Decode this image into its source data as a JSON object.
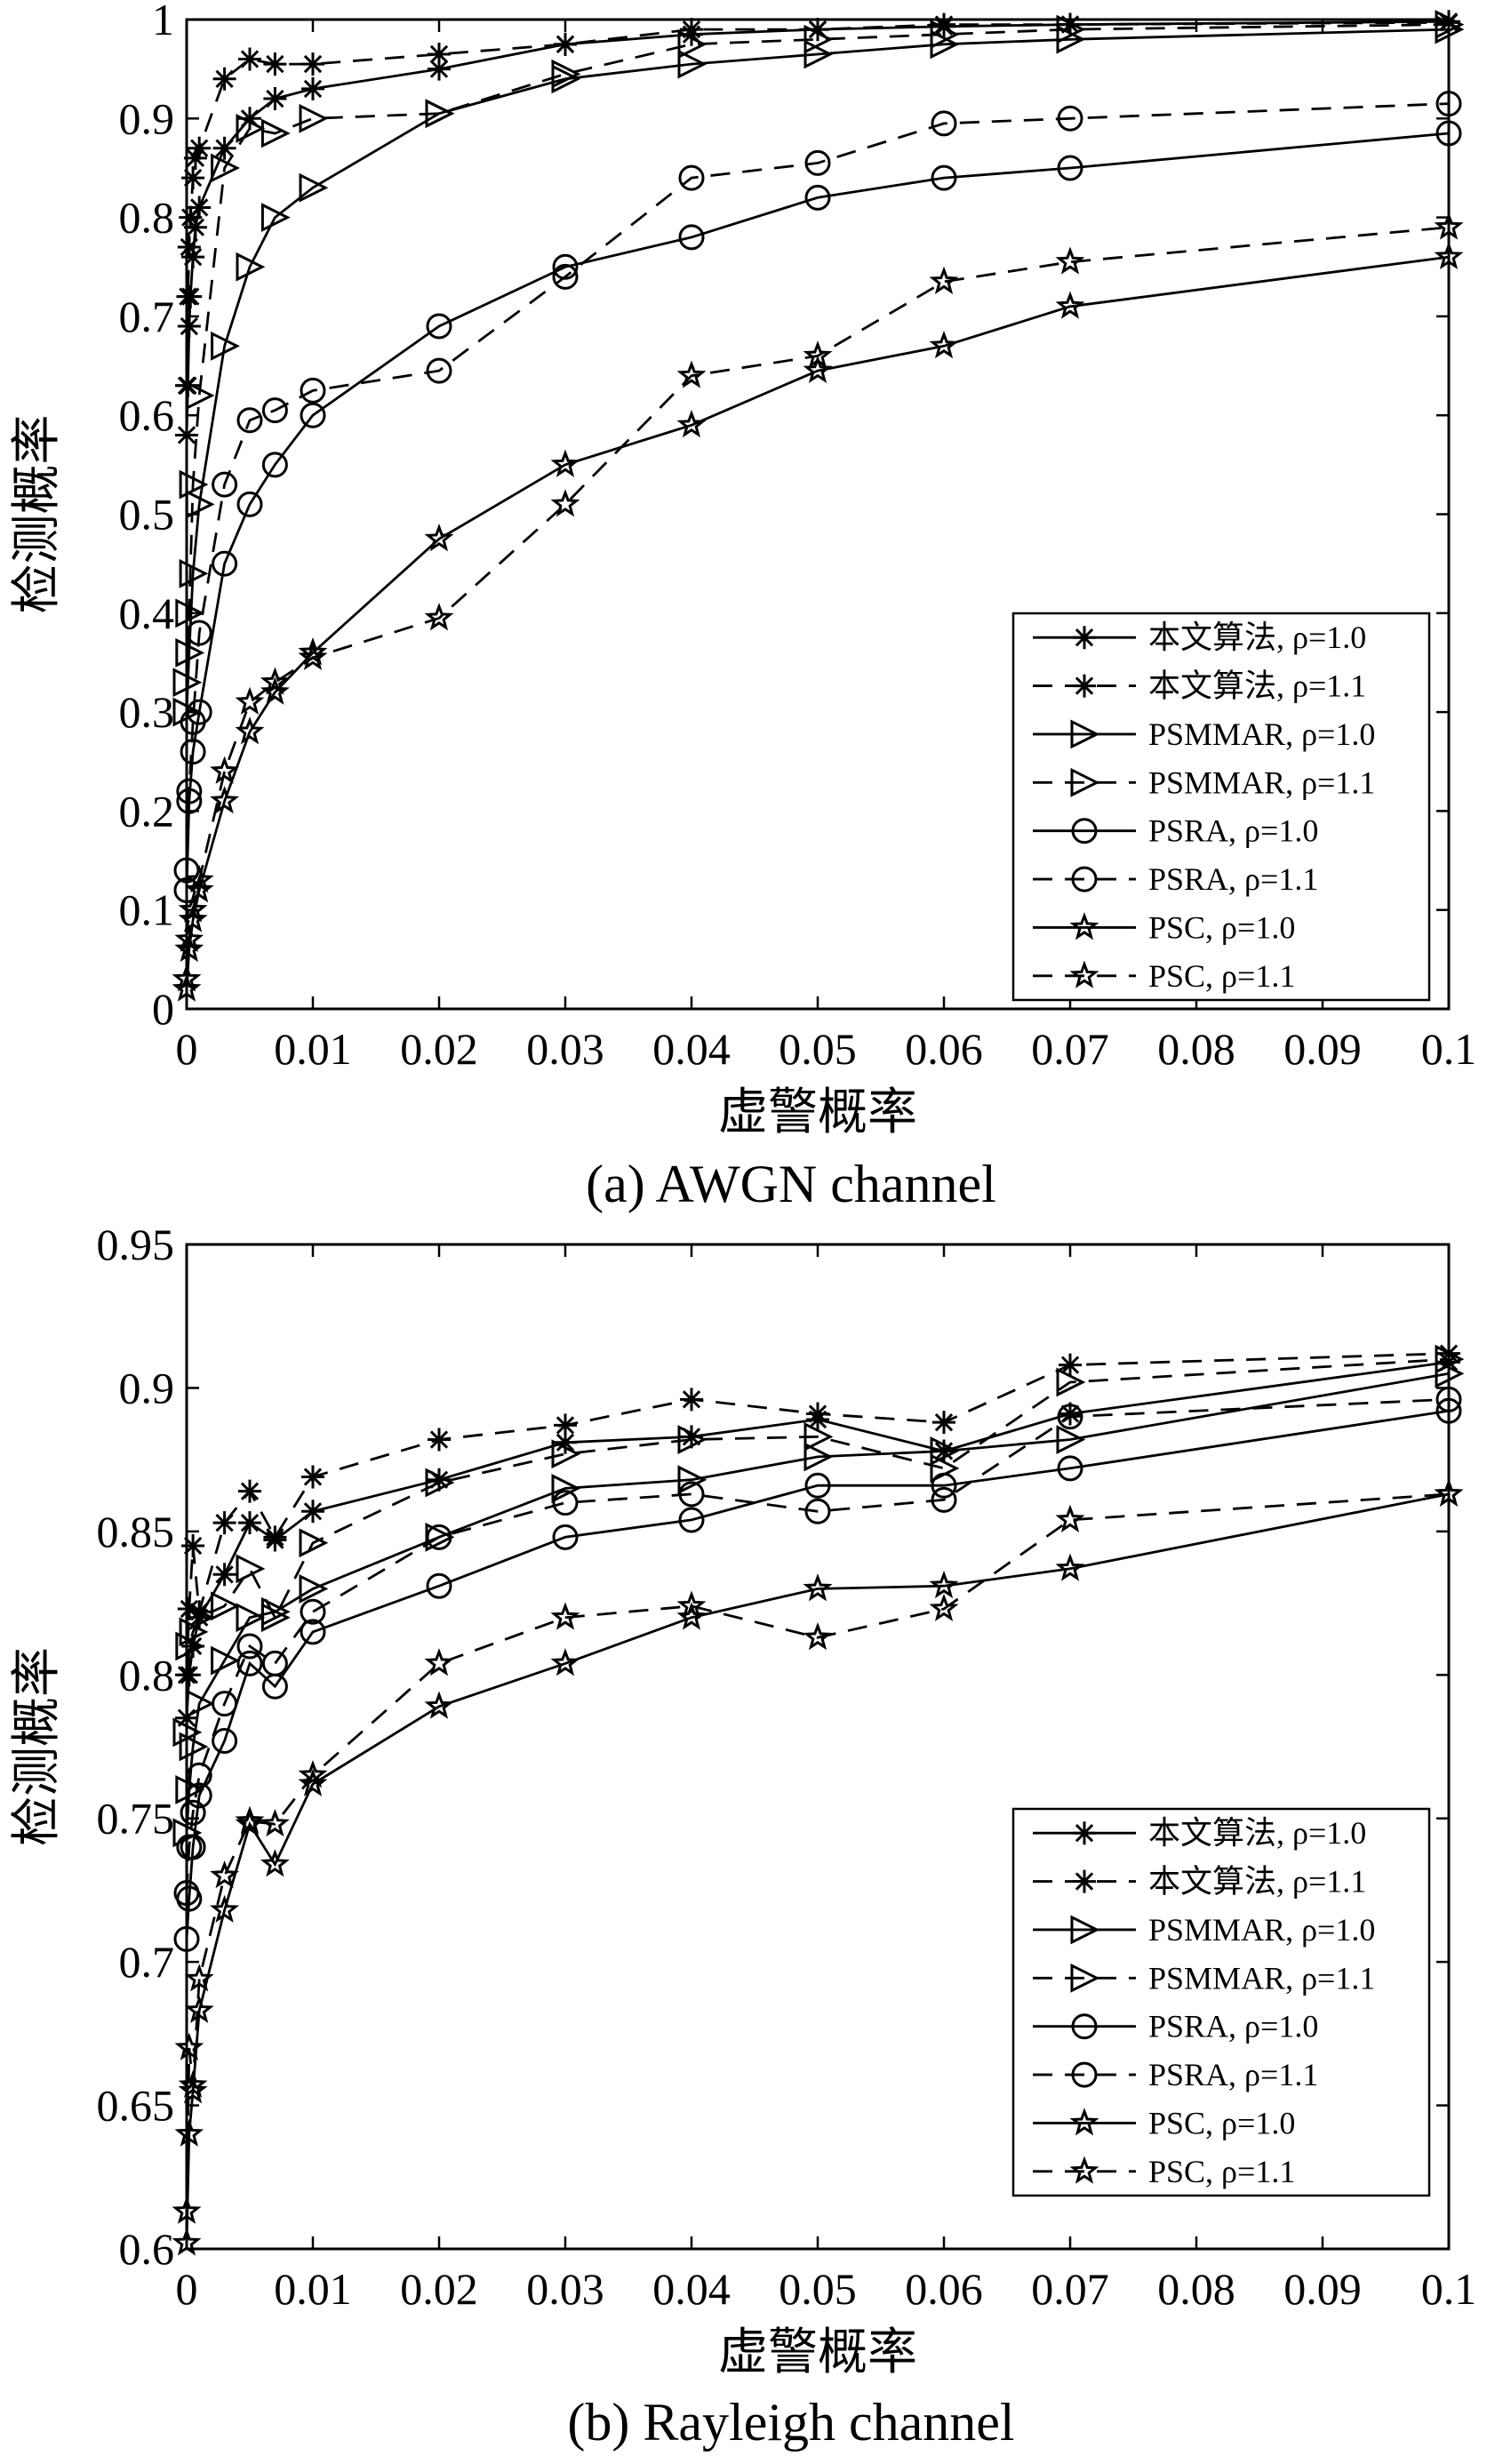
{
  "chart_data": [
    {
      "type": "line",
      "panel": "a",
      "caption": "(a) AWGN channel",
      "xlabel": "虚警概率",
      "ylabel": "检测概率",
      "xlim": [
        0,
        0.1
      ],
      "ylim": [
        0,
        1
      ],
      "xticks": [
        "0",
        "0.01",
        "0.02",
        "0.03",
        "0.04",
        "0.05",
        "0.06",
        "0.07",
        "0.08",
        "0.09",
        "0.1"
      ],
      "yticks": [
        "0",
        "0.1",
        "0.2",
        "0.3",
        "0.4",
        "0.5",
        "0.6",
        "0.7",
        "0.8",
        "0.9",
        "1"
      ],
      "grid": false,
      "legend_position": "bottom-right",
      "series": [
        {
          "name": "本文算法, ρ=1.0",
          "marker": "asterisk",
          "dashed": false,
          "x": [
            0,
            0.0001,
            0.0002,
            0.0003,
            0.0005,
            0.0007,
            0.001,
            0.003,
            0.005,
            0.007,
            0.01,
            0.02,
            0.03,
            0.04,
            0.05,
            0.06,
            0.07,
            0.1
          ],
          "y": [
            0.58,
            0.63,
            0.69,
            0.72,
            0.76,
            0.79,
            0.81,
            0.87,
            0.9,
            0.92,
            0.93,
            0.95,
            0.975,
            0.985,
            0.99,
            0.993,
            0.995,
            0.998
          ]
        },
        {
          "name": "本文算法, ρ=1.1",
          "marker": "asterisk",
          "dashed": true,
          "x": [
            0,
            0.0001,
            0.0002,
            0.0003,
            0.0005,
            0.0007,
            0.001,
            0.003,
            0.005,
            0.007,
            0.01,
            0.02,
            0.03,
            0.04,
            0.05,
            0.06,
            0.07,
            0.1
          ],
          "y": [
            0.63,
            0.72,
            0.77,
            0.8,
            0.84,
            0.86,
            0.87,
            0.94,
            0.96,
            0.955,
            0.955,
            0.965,
            0.975,
            0.99,
            0.99,
            0.995,
            0.995,
            0.997
          ]
        },
        {
          "name": "PSMMAR, ρ=1.0",
          "marker": "triangle-right",
          "dashed": false,
          "x": [
            0,
            0.0002,
            0.0005,
            0.001,
            0.003,
            0.005,
            0.007,
            0.01,
            0.02,
            0.03,
            0.04,
            0.05,
            0.06,
            0.07,
            0.1
          ],
          "y": [
            0.3,
            0.36,
            0.44,
            0.51,
            0.67,
            0.75,
            0.8,
            0.83,
            0.905,
            0.94,
            0.955,
            0.965,
            0.975,
            0.98,
            0.99
          ]
        },
        {
          "name": "PSMMAR, ρ=1.1",
          "marker": "triangle-right",
          "dashed": true,
          "x": [
            0,
            0.0002,
            0.0005,
            0.001,
            0.003,
            0.005,
            0.007,
            0.01,
            0.02,
            0.03,
            0.04,
            0.05,
            0.06,
            0.07,
            0.1
          ],
          "y": [
            0.33,
            0.4,
            0.53,
            0.62,
            0.85,
            0.89,
            0.885,
            0.9,
            0.905,
            0.945,
            0.975,
            0.98,
            0.985,
            0.99,
            0.995
          ]
        },
        {
          "name": "PSRA, ρ=1.0",
          "marker": "circle",
          "dashed": false,
          "x": [
            0,
            0.0002,
            0.0005,
            0.001,
            0.003,
            0.005,
            0.007,
            0.01,
            0.02,
            0.03,
            0.04,
            0.05,
            0.06,
            0.07,
            0.1
          ],
          "y": [
            0.12,
            0.21,
            0.26,
            0.3,
            0.45,
            0.51,
            0.55,
            0.6,
            0.69,
            0.75,
            0.78,
            0.82,
            0.84,
            0.85,
            0.885
          ]
        },
        {
          "name": "PSRA, ρ=1.1",
          "marker": "circle",
          "dashed": true,
          "x": [
            0,
            0.0002,
            0.0005,
            0.001,
            0.003,
            0.005,
            0.007,
            0.01,
            0.02,
            0.03,
            0.04,
            0.05,
            0.06,
            0.07,
            0.1
          ],
          "y": [
            0.14,
            0.22,
            0.29,
            0.38,
            0.53,
            0.595,
            0.605,
            0.625,
            0.645,
            0.74,
            0.84,
            0.855,
            0.895,
            0.9,
            0.915
          ]
        },
        {
          "name": "PSC, ρ=1.0",
          "marker": "star",
          "dashed": false,
          "x": [
            0,
            0.0002,
            0.0005,
            0.001,
            0.003,
            0.005,
            0.007,
            0.01,
            0.02,
            0.03,
            0.04,
            0.05,
            0.06,
            0.07,
            0.1
          ],
          "y": [
            0.02,
            0.06,
            0.09,
            0.12,
            0.21,
            0.28,
            0.32,
            0.36,
            0.475,
            0.55,
            0.59,
            0.645,
            0.67,
            0.71,
            0.76
          ]
        },
        {
          "name": "PSC, ρ=1.1",
          "marker": "star",
          "dashed": true,
          "x": [
            0,
            0.0002,
            0.0005,
            0.001,
            0.003,
            0.005,
            0.007,
            0.01,
            0.02,
            0.03,
            0.04,
            0.05,
            0.06,
            0.07,
            0.1
          ],
          "y": [
            0.03,
            0.07,
            0.1,
            0.13,
            0.24,
            0.31,
            0.33,
            0.355,
            0.395,
            0.51,
            0.64,
            0.66,
            0.735,
            0.755,
            0.79
          ]
        }
      ]
    },
    {
      "type": "line",
      "panel": "b",
      "caption": "(b) Rayleigh channel",
      "xlabel": "虚警概率",
      "ylabel": "检测概率",
      "xlim": [
        0,
        0.1
      ],
      "ylim": [
        0.6,
        0.95
      ],
      "xticks": [
        "0",
        "0.01",
        "0.02",
        "0.03",
        "0.04",
        "0.05",
        "0.06",
        "0.07",
        "0.08",
        "0.09",
        "0.1"
      ],
      "yticks": [
        "0.6",
        "0.65",
        "0.7",
        "0.75",
        "0.8",
        "0.85",
        "0.9",
        "0.95"
      ],
      "grid": false,
      "legend_position": "bottom-right",
      "series": [
        {
          "name": "本文算法, ρ=1.0",
          "marker": "asterisk",
          "dashed": false,
          "x": [
            0,
            0.0002,
            0.0005,
            0.001,
            0.003,
            0.005,
            0.007,
            0.01,
            0.02,
            0.03,
            0.04,
            0.05,
            0.06,
            0.07,
            0.1
          ],
          "y": [
            0.785,
            0.8,
            0.81,
            0.82,
            0.835,
            0.853,
            0.847,
            0.857,
            0.868,
            0.881,
            0.883,
            0.889,
            0.878,
            0.891,
            0.909
          ]
        },
        {
          "name": "本文算法, ρ=1.1",
          "marker": "asterisk",
          "dashed": true,
          "x": [
            0,
            0.0002,
            0.0005,
            0.001,
            0.003,
            0.005,
            0.007,
            0.01,
            0.02,
            0.03,
            0.04,
            0.05,
            0.06,
            0.07,
            0.1
          ],
          "y": [
            0.8,
            0.823,
            0.845,
            0.822,
            0.853,
            0.864,
            0.848,
            0.869,
            0.882,
            0.887,
            0.896,
            0.891,
            0.888,
            0.908,
            0.912
          ]
        },
        {
          "name": "PSMMAR, ρ=1.0",
          "marker": "triangle-right",
          "dashed": false,
          "x": [
            0,
            0.0002,
            0.0005,
            0.001,
            0.003,
            0.005,
            0.007,
            0.01,
            0.02,
            0.03,
            0.04,
            0.05,
            0.06,
            0.07,
            0.1
          ],
          "y": [
            0.745,
            0.76,
            0.775,
            0.79,
            0.805,
            0.82,
            0.822,
            0.83,
            0.848,
            0.865,
            0.868,
            0.876,
            0.878,
            0.882,
            0.905
          ]
        },
        {
          "name": "PSMMAR, ρ=1.1",
          "marker": "triangle-right",
          "dashed": true,
          "x": [
            0,
            0.0002,
            0.0005,
            0.001,
            0.003,
            0.005,
            0.007,
            0.01,
            0.02,
            0.03,
            0.04,
            0.05,
            0.06,
            0.07,
            0.1
          ],
          "y": [
            0.78,
            0.81,
            0.815,
            0.82,
            0.824,
            0.837,
            0.82,
            0.846,
            0.867,
            0.877,
            0.882,
            0.883,
            0.872,
            0.902,
            0.91
          ]
        },
        {
          "name": "PSRA, ρ=1.0",
          "marker": "circle",
          "dashed": false,
          "x": [
            0,
            0.0002,
            0.0005,
            0.001,
            0.003,
            0.005,
            0.007,
            0.01,
            0.02,
            0.03,
            0.04,
            0.05,
            0.06,
            0.07,
            0.1
          ],
          "y": [
            0.708,
            0.722,
            0.74,
            0.758,
            0.777,
            0.804,
            0.796,
            0.815,
            0.831,
            0.848,
            0.854,
            0.866,
            0.866,
            0.872,
            0.892
          ]
        },
        {
          "name": "PSRA, ρ=1.1",
          "marker": "circle",
          "dashed": true,
          "x": [
            0,
            0.0002,
            0.0005,
            0.001,
            0.003,
            0.005,
            0.007,
            0.01,
            0.02,
            0.03,
            0.04,
            0.05,
            0.06,
            0.07,
            0.1
          ],
          "y": [
            0.724,
            0.74,
            0.752,
            0.765,
            0.79,
            0.81,
            0.804,
            0.822,
            0.848,
            0.86,
            0.863,
            0.857,
            0.861,
            0.89,
            0.896
          ]
        },
        {
          "name": "PSC, ρ=1.0",
          "marker": "star",
          "dashed": false,
          "x": [
            0,
            0.0002,
            0.0005,
            0.001,
            0.003,
            0.005,
            0.007,
            0.01,
            0.02,
            0.03,
            0.04,
            0.05,
            0.06,
            0.07,
            0.1
          ],
          "y": [
            0.602,
            0.64,
            0.655,
            0.683,
            0.718,
            0.748,
            0.734,
            0.762,
            0.789,
            0.804,
            0.82,
            0.83,
            0.831,
            0.837,
            0.863
          ]
        },
        {
          "name": "PSC, ρ=1.1",
          "marker": "star",
          "dashed": true,
          "x": [
            0,
            0.0002,
            0.0005,
            0.001,
            0.003,
            0.005,
            0.007,
            0.01,
            0.02,
            0.03,
            0.04,
            0.05,
            0.06,
            0.07,
            0.1
          ],
          "y": [
            0.613,
            0.67,
            0.657,
            0.694,
            0.73,
            0.749,
            0.748,
            0.765,
            0.804,
            0.82,
            0.824,
            0.813,
            0.823,
            0.854,
            0.863
          ]
        }
      ]
    }
  ]
}
